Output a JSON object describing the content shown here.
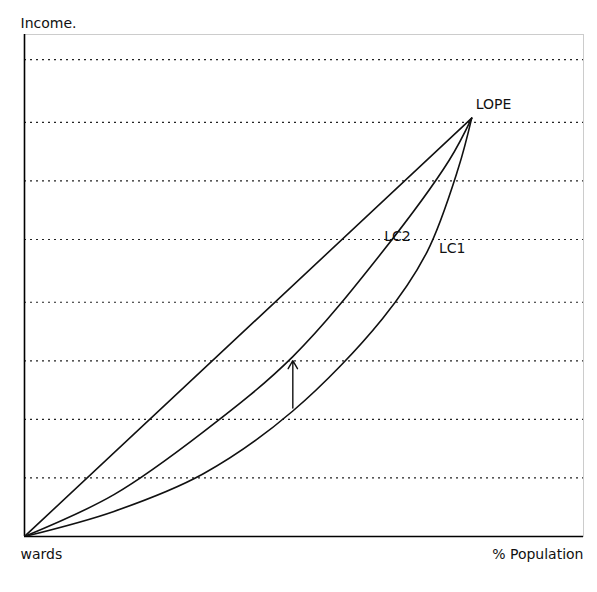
{
  "chart_data": {
    "type": "line",
    "xlabel": "% Population",
    "ylabel": "Income.",
    "xlim": [
      0,
      125
    ],
    "ylim": [
      0,
      120
    ],
    "yticks": [
      14,
      28,
      42,
      56,
      71,
      85,
      99,
      114
    ],
    "grid": true,
    "tick_labels": false,
    "annotations": [
      "wards"
    ],
    "series": [
      {
        "name": "LOPE",
        "color": "#111111",
        "line_style": "solid",
        "x": [
          0,
          100
        ],
        "values": [
          0,
          100
        ]
      },
      {
        "name": "LC2",
        "color": "#111111",
        "line_style": "solid",
        "x": [
          0,
          20,
          40,
          60,
          80,
          95,
          100
        ],
        "values": [
          0,
          10,
          25,
          43,
          68,
          90,
          100
        ]
      },
      {
        "name": "LC1",
        "color": "#111111",
        "line_style": "solid",
        "x": [
          0,
          20,
          40,
          60,
          80,
          90,
          97,
          100
        ],
        "values": [
          0,
          6,
          15,
          30,
          52,
          68,
          88,
          100
        ]
      }
    ]
  }
}
